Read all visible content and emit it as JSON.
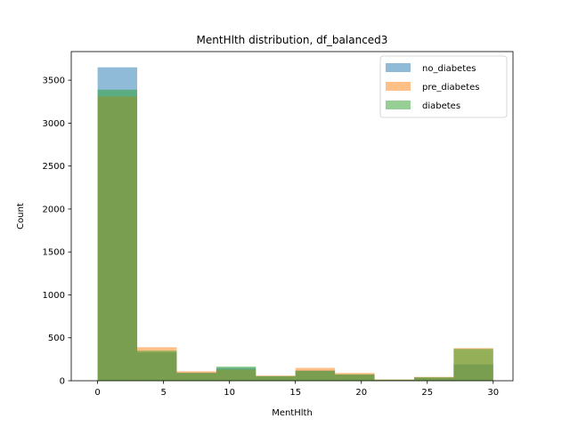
{
  "chart_data": {
    "type": "histogram",
    "title": "MentHlth distribution, df_balanced3",
    "xlabel": "MentHlth",
    "ylabel": "Count",
    "xlim": [
      -2,
      31.5
    ],
    "ylim": [
      0,
      3833
    ],
    "xticks": [
      0,
      5,
      10,
      15,
      20,
      25,
      30
    ],
    "yticks": [
      0,
      500,
      1000,
      1500,
      2000,
      2500,
      3000,
      3500
    ],
    "bin_edges": [
      0,
      3,
      6,
      9,
      12,
      15,
      18,
      21,
      24,
      27,
      30
    ],
    "alpha": 0.5,
    "legend_position": "upper right",
    "series": [
      {
        "name": "no_diabetes",
        "color": "#1f77b4",
        "values": [
          3650,
          330,
          95,
          150,
          50,
          120,
          70,
          10,
          35,
          190
        ]
      },
      {
        "name": "pre_diabetes",
        "color": "#ff7f0e",
        "values": [
          3310,
          390,
          110,
          130,
          60,
          150,
          90,
          15,
          45,
          380
        ]
      },
      {
        "name": "diabetes",
        "color": "#2ca02c",
        "values": [
          3390,
          350,
          90,
          165,
          55,
          115,
          75,
          12,
          40,
          370
        ]
      }
    ]
  }
}
